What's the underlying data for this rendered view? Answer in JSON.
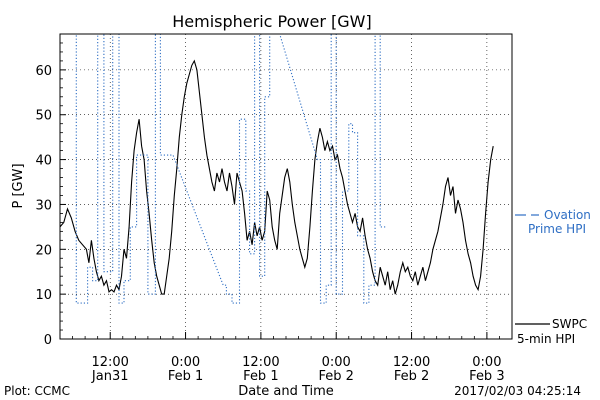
{
  "chart_data": {
    "type": "line",
    "title": "Hemispheric Power [GW]",
    "ylabel": "P [GW]",
    "xlabel": "Date and Time",
    "ylim": [
      0,
      68
    ],
    "y_ticks": [
      0,
      10,
      20,
      30,
      40,
      50,
      60
    ],
    "x_tick_labels": [
      {
        "hours": 12,
        "time": "12:00",
        "date": "Jan31"
      },
      {
        "hours": 24,
        "time": "0:00",
        "date": "Feb 1"
      },
      {
        "hours": 36,
        "time": "12:00",
        "date": "Feb 1"
      },
      {
        "hours": 48,
        "time": "0:00",
        "date": "Feb 2"
      },
      {
        "hours": 60,
        "time": "12:00",
        "date": "Feb 2"
      },
      {
        "hours": 72,
        "time": "0:00",
        "date": "Feb 3"
      }
    ],
    "xlim": [
      4,
      76
    ],
    "grid": true,
    "series": [
      {
        "name": "SWPC 5-min HPI",
        "style": "solid",
        "color": "#000000",
        "points": [
          [
            4,
            25
          ],
          [
            4.6,
            26
          ],
          [
            5.2,
            29
          ],
          [
            5.8,
            27
          ],
          [
            6.4,
            24
          ],
          [
            7,
            22
          ],
          [
            7.6,
            21
          ],
          [
            8.2,
            20
          ],
          [
            8.6,
            17
          ],
          [
            9,
            22
          ],
          [
            9.4,
            18
          ],
          [
            9.8,
            15
          ],
          [
            10.2,
            13
          ],
          [
            10.6,
            14
          ],
          [
            11,
            12
          ],
          [
            11.4,
            13
          ],
          [
            11.8,
            10.5
          ],
          [
            12.2,
            11
          ],
          [
            12.6,
            10.5
          ],
          [
            13,
            12
          ],
          [
            13.4,
            11
          ],
          [
            13.8,
            14
          ],
          [
            14.2,
            20
          ],
          [
            14.6,
            18
          ],
          [
            15,
            25
          ],
          [
            15.4,
            35
          ],
          [
            15.8,
            42
          ],
          [
            16.2,
            46
          ],
          [
            16.6,
            49
          ],
          [
            17,
            43
          ],
          [
            17.4,
            40
          ],
          [
            17.8,
            33
          ],
          [
            18.2,
            28
          ],
          [
            18.6,
            22
          ],
          [
            19,
            17
          ],
          [
            19.4,
            14
          ],
          [
            19.8,
            12
          ],
          [
            20.2,
            10
          ],
          [
            20.6,
            10
          ],
          [
            21,
            14
          ],
          [
            21.4,
            18
          ],
          [
            21.8,
            24
          ],
          [
            22.2,
            32
          ],
          [
            22.6,
            38
          ],
          [
            23,
            45
          ],
          [
            23.4,
            50
          ],
          [
            23.8,
            54
          ],
          [
            24.2,
            57
          ],
          [
            24.6,
            59
          ],
          [
            25,
            61
          ],
          [
            25.4,
            62
          ],
          [
            25.8,
            60
          ],
          [
            26.2,
            55
          ],
          [
            26.6,
            50
          ],
          [
            27,
            45
          ],
          [
            27.4,
            41
          ],
          [
            27.8,
            38
          ],
          [
            28.2,
            35
          ],
          [
            28.6,
            33
          ],
          [
            29,
            37
          ],
          [
            29.4,
            35
          ],
          [
            29.8,
            38
          ],
          [
            30.2,
            35
          ],
          [
            30.6,
            33
          ],
          [
            31,
            37
          ],
          [
            31.4,
            34
          ],
          [
            31.8,
            30
          ],
          [
            32.2,
            37
          ],
          [
            32.6,
            35
          ],
          [
            33,
            33
          ],
          [
            33.4,
            28
          ],
          [
            33.8,
            22
          ],
          [
            34.2,
            24
          ],
          [
            34.6,
            21
          ],
          [
            35,
            26
          ],
          [
            35.4,
            23
          ],
          [
            35.8,
            25
          ],
          [
            36.2,
            22
          ],
          [
            36.6,
            24
          ],
          [
            37,
            33
          ],
          [
            37.4,
            31
          ],
          [
            37.8,
            25
          ],
          [
            38.2,
            22
          ],
          [
            38.6,
            20
          ],
          [
            39,
            28
          ],
          [
            39.4,
            32
          ],
          [
            39.8,
            36
          ],
          [
            40.2,
            38
          ],
          [
            40.6,
            35
          ],
          [
            41,
            30
          ],
          [
            41.4,
            26
          ],
          [
            41.8,
            23
          ],
          [
            42.2,
            20
          ],
          [
            42.6,
            18
          ],
          [
            43,
            16
          ],
          [
            43.4,
            18
          ],
          [
            43.8,
            25
          ],
          [
            44.2,
            33
          ],
          [
            44.6,
            40
          ],
          [
            45,
            44
          ],
          [
            45.4,
            47
          ],
          [
            45.8,
            45
          ],
          [
            46.2,
            42
          ],
          [
            46.6,
            44
          ],
          [
            47,
            42
          ],
          [
            47.4,
            43
          ],
          [
            47.8,
            40
          ],
          [
            48.2,
            41
          ],
          [
            48.6,
            38
          ],
          [
            49,
            36
          ],
          [
            49.4,
            33
          ],
          [
            49.8,
            30
          ],
          [
            50.2,
            28
          ],
          [
            50.6,
            26
          ],
          [
            51,
            28
          ],
          [
            51.4,
            25
          ],
          [
            51.8,
            24
          ],
          [
            52.2,
            27
          ],
          [
            52.6,
            23
          ],
          [
            53,
            20
          ],
          [
            53.4,
            18
          ],
          [
            53.8,
            15
          ],
          [
            54.2,
            13
          ],
          [
            54.6,
            12
          ],
          [
            55,
            16
          ],
          [
            55.4,
            14
          ],
          [
            55.8,
            12
          ],
          [
            56.2,
            15
          ],
          [
            56.6,
            11
          ],
          [
            57,
            13
          ],
          [
            57.4,
            10
          ],
          [
            57.8,
            12
          ],
          [
            58.2,
            15
          ],
          [
            58.6,
            17
          ],
          [
            59,
            15
          ],
          [
            59.4,
            16
          ],
          [
            59.8,
            14
          ],
          [
            60.2,
            13
          ],
          [
            60.6,
            15
          ],
          [
            61,
            12
          ],
          [
            61.4,
            14
          ],
          [
            61.8,
            16
          ],
          [
            62.2,
            13
          ],
          [
            62.6,
            15
          ],
          [
            63,
            17
          ],
          [
            63.4,
            20
          ],
          [
            63.8,
            22
          ],
          [
            64.2,
            24
          ],
          [
            64.6,
            27
          ],
          [
            65,
            30
          ],
          [
            65.4,
            34
          ],
          [
            65.8,
            36
          ],
          [
            66.2,
            32
          ],
          [
            66.6,
            34
          ],
          [
            67,
            28
          ],
          [
            67.4,
            31
          ],
          [
            67.8,
            29
          ],
          [
            68.2,
            26
          ],
          [
            68.6,
            22
          ],
          [
            69,
            19
          ],
          [
            69.4,
            17
          ],
          [
            69.8,
            14
          ],
          [
            70.2,
            12
          ],
          [
            70.6,
            11
          ],
          [
            71,
            14
          ],
          [
            71.4,
            20
          ],
          [
            71.8,
            28
          ],
          [
            72.2,
            35
          ],
          [
            72.6,
            40
          ],
          [
            73,
            43
          ]
        ]
      },
      {
        "name": "Ovation Prime HPI",
        "style": "dotted",
        "color": "#2f6fc4",
        "points": [
          [
            5.8,
            68
          ],
          [
            6.6,
            68
          ],
          [
            6.6,
            8
          ],
          [
            8.4,
            8
          ],
          [
            8.4,
            16
          ],
          [
            9.2,
            16
          ],
          [
            9.2,
            13
          ],
          [
            10,
            13
          ],
          [
            10,
            68
          ],
          [
            11,
            68
          ],
          [
            11,
            15
          ],
          [
            12.4,
            15
          ],
          [
            12.4,
            68
          ],
          [
            13.4,
            68
          ],
          [
            13.4,
            8
          ],
          [
            14.2,
            8
          ],
          [
            14.2,
            13
          ],
          [
            15.2,
            13
          ],
          [
            15.2,
            25
          ],
          [
            16.2,
            25
          ],
          [
            16.2,
            41
          ],
          [
            18,
            41
          ],
          [
            18,
            10
          ],
          [
            19.2,
            10
          ],
          [
            19.2,
            68
          ],
          [
            20,
            68
          ],
          [
            20,
            41
          ],
          [
            22,
            41
          ],
          [
            30,
            12
          ],
          [
            30.5,
            12
          ],
          [
            30.5,
            10
          ],
          [
            31.4,
            10
          ],
          [
            31.4,
            8
          ],
          [
            32.6,
            8
          ],
          [
            32.6,
            49
          ],
          [
            33.6,
            49
          ],
          [
            33.6,
            33
          ],
          [
            34.2,
            33
          ],
          [
            34.2,
            19
          ],
          [
            35,
            19
          ],
          [
            35,
            68
          ],
          [
            35.8,
            68
          ],
          [
            35.8,
            14
          ],
          [
            36.6,
            14
          ],
          [
            36.6,
            54
          ],
          [
            37.4,
            54
          ],
          [
            37.4,
            68
          ],
          [
            39,
            68
          ],
          [
            45,
            40
          ],
          [
            45.5,
            40
          ],
          [
            45.5,
            8
          ],
          [
            46.4,
            8
          ],
          [
            46.4,
            12
          ],
          [
            47.2,
            12
          ],
          [
            47.2,
            68
          ],
          [
            48,
            68
          ],
          [
            48,
            10
          ],
          [
            49,
            10
          ],
          [
            49,
            33
          ],
          [
            50,
            33
          ],
          [
            50,
            48
          ],
          [
            50.6,
            48
          ],
          [
            50.6,
            46
          ],
          [
            51.4,
            46
          ],
          [
            51.4,
            23
          ],
          [
            52.4,
            23
          ],
          [
            52.4,
            8
          ],
          [
            53.2,
            8
          ],
          [
            53.2,
            12
          ],
          [
            54.2,
            12
          ],
          [
            54.2,
            68
          ],
          [
            55,
            68
          ],
          [
            55,
            25
          ],
          [
            55.8,
            25
          ]
        ]
      }
    ]
  },
  "legend": {
    "ovation_line1": "Ovation",
    "ovation_line2": "Prime HPI",
    "swpc_line1": "SWPC",
    "swpc_line2": "5-min HPI"
  },
  "footer": {
    "left": "Plot: CCMC",
    "timestamp": "2017/02/03 04:25:14"
  },
  "colors": {
    "ovation": "#2f6fc4",
    "swpc": "#000000"
  }
}
